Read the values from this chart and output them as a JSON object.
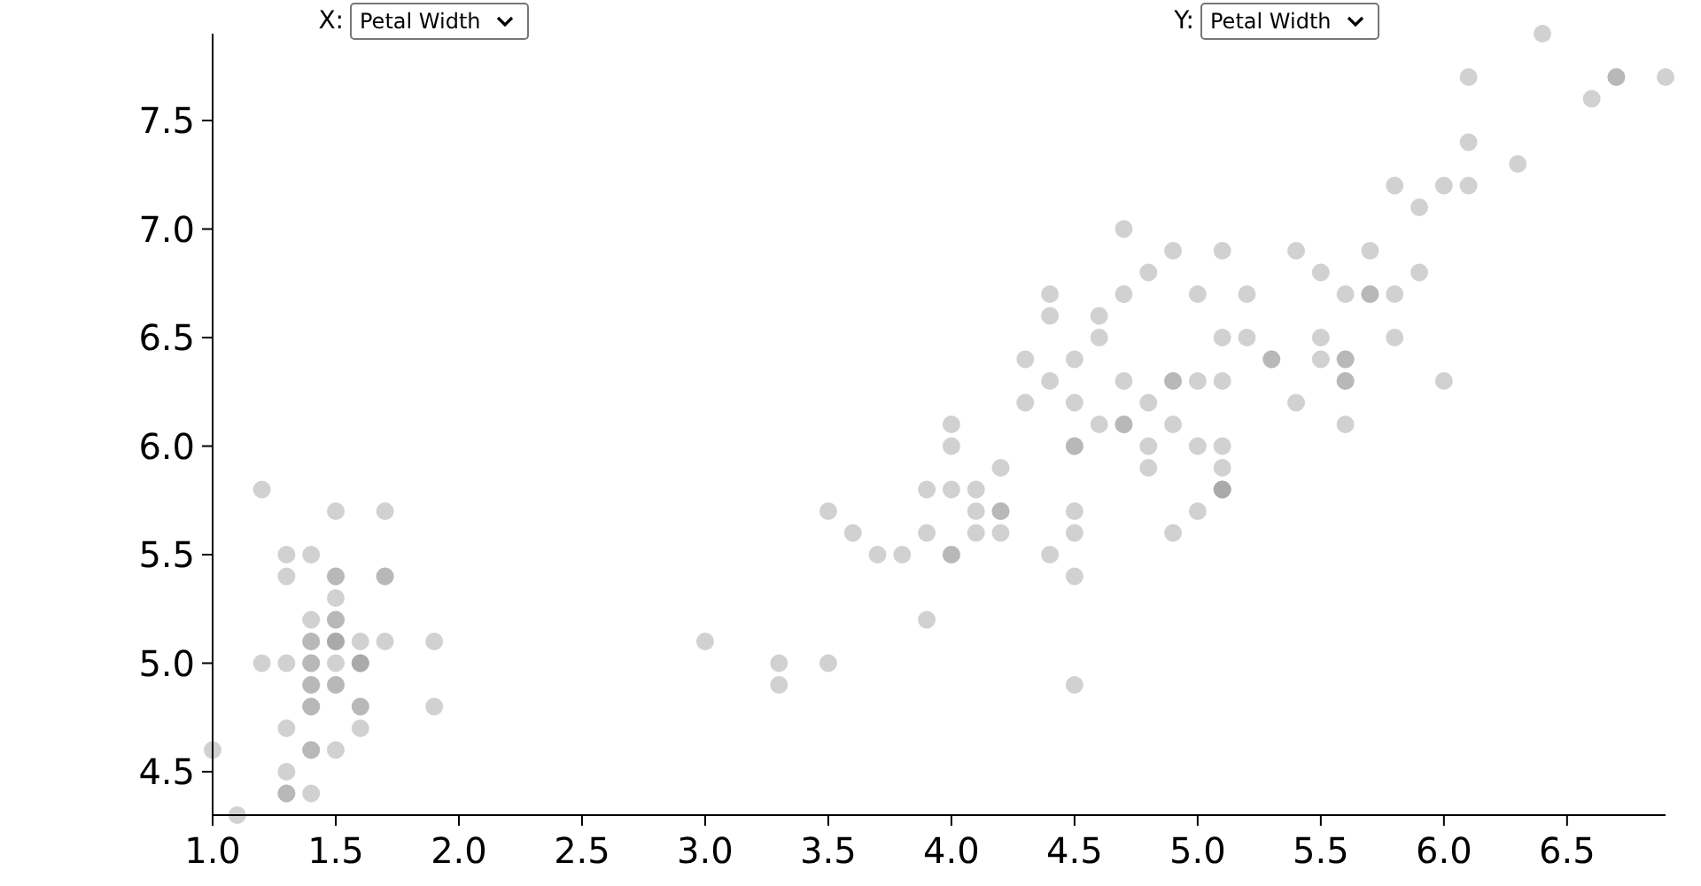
{
  "chart_data": {
    "type": "scatter",
    "annotations": [
      "X:",
      "Petal Width",
      "Y:",
      "Petal Width"
    ],
    "color": "#999999",
    "marker": "circle",
    "grid": false,
    "x": [
      1.4,
      1.4,
      1.3,
      1.5,
      1.4,
      1.7,
      1.4,
      1.5,
      1.4,
      1.5,
      1.5,
      1.6,
      1.4,
      1.1,
      1.2,
      1.5,
      1.3,
      1.4,
      1.7,
      1.5,
      1.7,
      1.5,
      1.0,
      1.7,
      1.9,
      1.6,
      1.6,
      1.5,
      1.4,
      1.6,
      1.6,
      1.5,
      1.5,
      1.4,
      1.5,
      1.2,
      1.3,
      1.4,
      1.3,
      1.5,
      1.3,
      1.3,
      1.3,
      1.6,
      1.9,
      1.4,
      1.6,
      1.4,
      1.5,
      1.4,
      4.7,
      4.5,
      4.9,
      4.0,
      4.6,
      4.5,
      4.7,
      3.3,
      4.6,
      3.9,
      3.5,
      4.2,
      4.0,
      4.7,
      3.6,
      4.4,
      4.5,
      4.1,
      4.5,
      3.9,
      4.8,
      4.0,
      4.9,
      4.7,
      4.3,
      4.4,
      4.8,
      5.0,
      4.5,
      3.5,
      3.8,
      3.7,
      3.9,
      5.1,
      4.5,
      4.5,
      4.7,
      4.4,
      4.1,
      4.0,
      4.4,
      4.6,
      4.0,
      3.3,
      4.2,
      4.2,
      4.2,
      4.3,
      3.0,
      4.1,
      6.0,
      5.1,
      5.9,
      5.6,
      5.8,
      6.6,
      4.5,
      6.3,
      5.8,
      6.1,
      5.1,
      5.3,
      5.5,
      5.0,
      5.1,
      5.3,
      5.5,
      6.7,
      6.9,
      5.0,
      5.7,
      4.9,
      6.7,
      4.9,
      5.7,
      6.0,
      4.8,
      4.9,
      5.6,
      5.8,
      6.1,
      6.4,
      5.6,
      5.1,
      5.6,
      6.1,
      5.6,
      5.5,
      4.8,
      5.4,
      5.6,
      5.1,
      5.1,
      5.9,
      5.7,
      5.2,
      5.0,
      5.2,
      5.4,
      5.1
    ],
    "values": [
      5.1,
      4.9,
      4.7,
      4.6,
      5.0,
      5.4,
      4.6,
      5.0,
      4.4,
      4.9,
      5.4,
      4.8,
      4.8,
      4.3,
      5.8,
      5.7,
      5.4,
      5.1,
      5.7,
      5.1,
      5.4,
      5.1,
      4.6,
      5.1,
      4.8,
      5.0,
      5.0,
      5.2,
      5.2,
      4.7,
      4.8,
      5.4,
      5.2,
      5.5,
      4.9,
      5.0,
      5.5,
      4.9,
      4.4,
      5.1,
      5.0,
      4.5,
      4.4,
      5.0,
      5.1,
      4.8,
      5.1,
      4.6,
      5.3,
      5.0,
      7.0,
      6.4,
      6.9,
      5.5,
      6.5,
      5.7,
      6.3,
      4.9,
      6.6,
      5.2,
      5.0,
      5.9,
      6.0,
      6.1,
      5.6,
      6.7,
      5.6,
      5.8,
      6.2,
      5.6,
      5.9,
      6.1,
      6.3,
      6.1,
      6.4,
      6.6,
      6.8,
      6.7,
      6.0,
      5.7,
      5.5,
      5.5,
      5.8,
      6.0,
      5.4,
      6.0,
      6.7,
      6.3,
      5.6,
      5.5,
      5.5,
      6.1,
      5.8,
      5.0,
      5.6,
      5.7,
      5.7,
      6.2,
      5.1,
      5.7,
      6.3,
      5.8,
      7.1,
      6.3,
      6.5,
      7.6,
      4.9,
      7.3,
      6.7,
      7.2,
      6.5,
      6.4,
      6.8,
      5.7,
      5.8,
      6.4,
      6.5,
      7.7,
      7.7,
      6.0,
      6.9,
      5.6,
      7.7,
      6.3,
      6.7,
      7.2,
      6.2,
      6.1,
      6.4,
      7.2,
      7.4,
      7.9,
      6.4,
      6.3,
      6.1,
      7.7,
      6.3,
      6.4,
      6.0,
      6.9,
      6.7,
      6.9,
      5.8,
      6.8,
      6.7,
      6.7,
      6.3,
      6.5,
      6.2,
      5.9
    ],
    "xlim": [
      1.0,
      6.9
    ],
    "ylim": [
      4.3,
      7.9
    ],
    "xticks": [
      {
        "value": 1,
        "label": "1.0"
      },
      1.5,
      {
        "value": 2,
        "label": "2.0"
      },
      2.5,
      {
        "value": 3,
        "label": "3.0"
      },
      3.5,
      {
        "value": 4,
        "label": "4.0"
      },
      4.5,
      {
        "value": 5,
        "label": "5.0"
      },
      5.5,
      {
        "value": 6,
        "label": "6.0"
      },
      6.5
    ],
    "yticks": [
      4.5,
      {
        "value": 5,
        "label": "5.0"
      },
      5.5,
      {
        "value": 6,
        "label": "6.0"
      },
      6.5,
      {
        "value": 7,
        "label": "7.0"
      },
      7.5
    ]
  }
}
